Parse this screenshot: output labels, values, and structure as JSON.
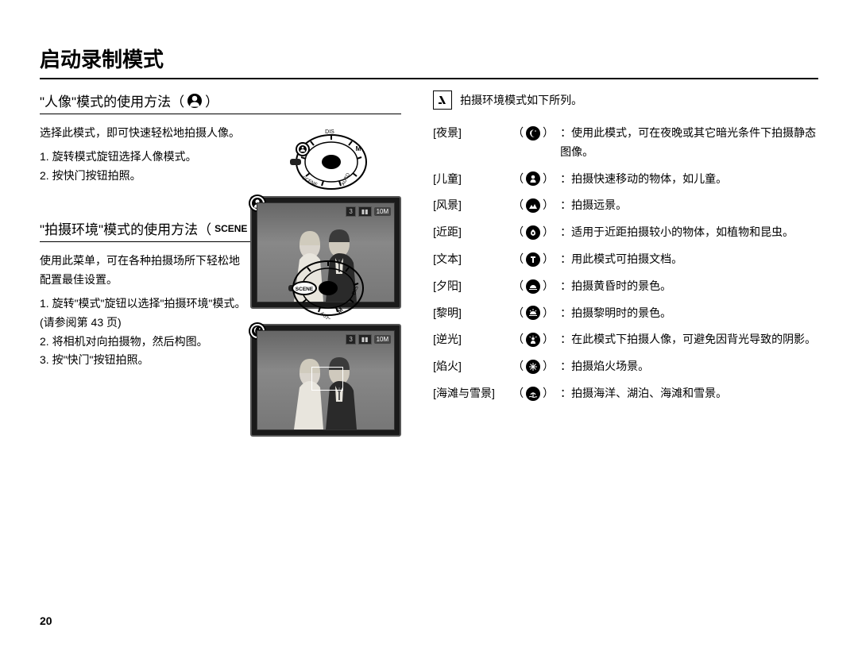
{
  "page_title": "启动录制模式",
  "page_number": "20",
  "section1": {
    "title_prefix": "\"人像\"模式的使用方法（",
    "title_suffix": "）",
    "icon_name": "portrait-icon",
    "intro": "选择此模式，即可快速轻松地拍摄人像。",
    "steps": [
      "1. 旋转模式旋钮选择人像模式。",
      "2. 按快门按钮拍照。"
    ],
    "lcd": {
      "count_text": "3",
      "size_badge": "10M",
      "battery": "▮▮"
    }
  },
  "section2": {
    "title_prefix": "\"拍摄环境\"模式的使用方法（",
    "scene_label": "SCENE",
    "title_suffix": "）",
    "intro": "使用此菜单，可在各种拍摄场所下轻松地配置最佳设置。",
    "steps": [
      "1. 旋转\"模式\"旋钮以选择\"拍摄环境\"模式。(请参阅第 43 页)",
      "2. 将相机对向拍摄物，然后构图。",
      "3. 按\"快门\"按钮拍照。"
    ],
    "lcd": {
      "count_text": "3",
      "size_badge": "10M",
      "battery": "▮▮"
    }
  },
  "right": {
    "intro_text": "拍摄环境模式如下所列。",
    "modes": [
      {
        "name": "[夜景]",
        "icon": "night",
        "desc": "：使用此模式，可在夜晚或其它暗光条件下拍摄静态图像。"
      },
      {
        "name": "[儿童]",
        "icon": "children",
        "desc": "：拍摄快速移动的物体，如儿童。"
      },
      {
        "name": "[风景]",
        "icon": "landscape",
        "desc": "：拍摄远景。"
      },
      {
        "name": "[近距]",
        "icon": "closeup",
        "desc": "：适用于近距拍摄较小的物体，如植物和昆虫。"
      },
      {
        "name": "[文本]",
        "icon": "text",
        "desc": "：用此模式可拍摄文档。"
      },
      {
        "name": "[夕阳]",
        "icon": "sunset",
        "desc": "：拍摄黄昏时的景色。"
      },
      {
        "name": "[黎明]",
        "icon": "dawn",
        "desc": "：拍摄黎明时的景色。"
      },
      {
        "name": "[逆光]",
        "icon": "backlight",
        "desc": "：在此模式下拍摄人像，可避免因背光导致的阴影。"
      },
      {
        "name": "[焰火]",
        "icon": "firework",
        "desc": "：拍摄焰火场景。"
      },
      {
        "name": "[海滩与雪景]",
        "icon": "beach",
        "desc": "：拍摄海洋、湖泊、海滩和雪景。"
      }
    ]
  },
  "colors": {
    "text": "#000000",
    "bg": "#ffffff",
    "lcd_bg": "#1a1a1a",
    "lcd_inner": "#777777"
  }
}
